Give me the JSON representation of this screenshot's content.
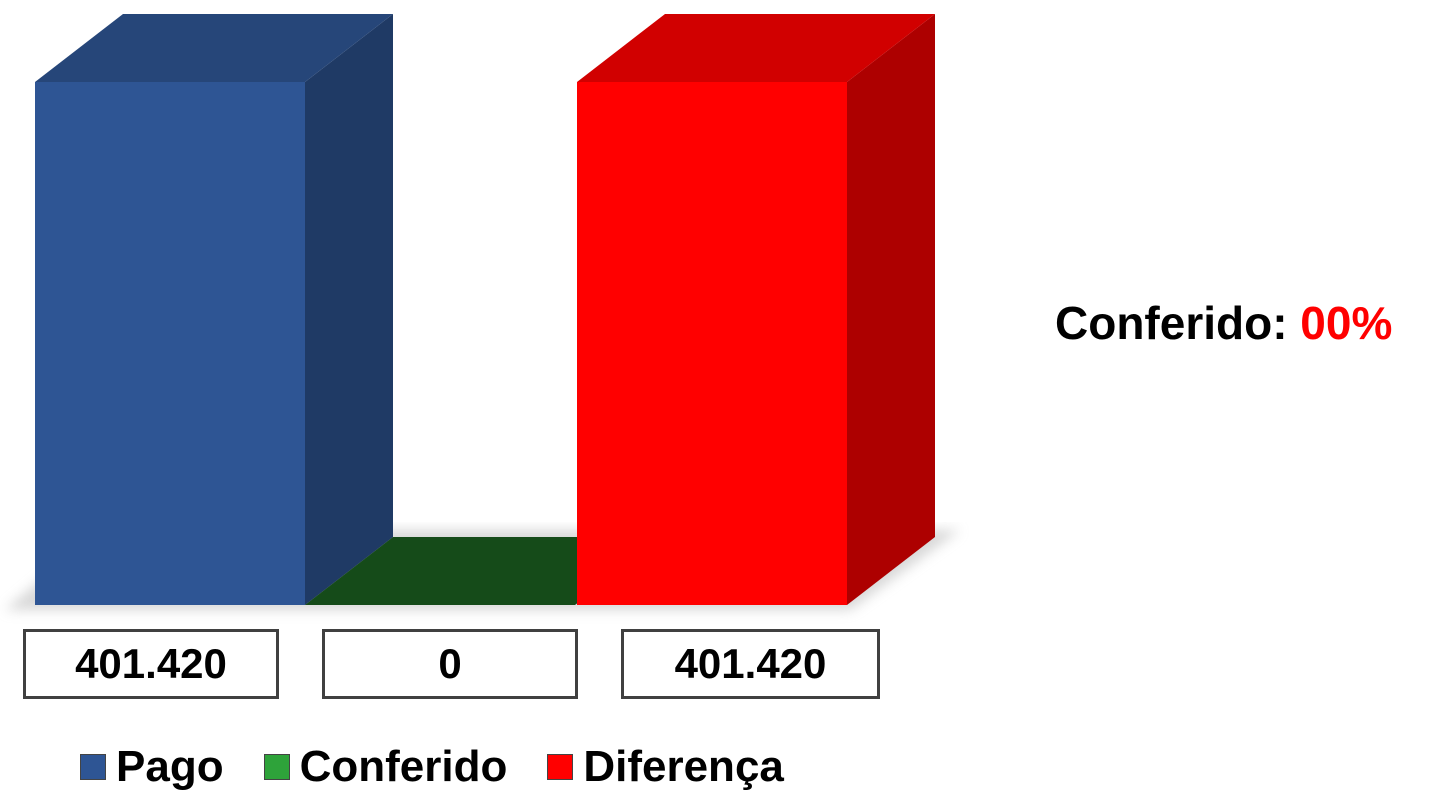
{
  "chart_data": {
    "type": "bar",
    "categories": [
      "Pago",
      "Conferido",
      "Diferença"
    ],
    "values": [
      401420,
      0,
      401420
    ],
    "value_labels": [
      "401.420",
      "0",
      "401.420"
    ],
    "colors": [
      "#2e5594",
      "#1a5c1f",
      "#ff0000"
    ],
    "ylim": [
      0,
      401420
    ],
    "legend": {
      "placement": "bottom",
      "entries": [
        "Pago",
        "Conferido",
        "Diferença"
      ]
    },
    "annotation": {
      "label": "Conferido:",
      "value": "00%",
      "value_color": "#ff0000"
    }
  }
}
